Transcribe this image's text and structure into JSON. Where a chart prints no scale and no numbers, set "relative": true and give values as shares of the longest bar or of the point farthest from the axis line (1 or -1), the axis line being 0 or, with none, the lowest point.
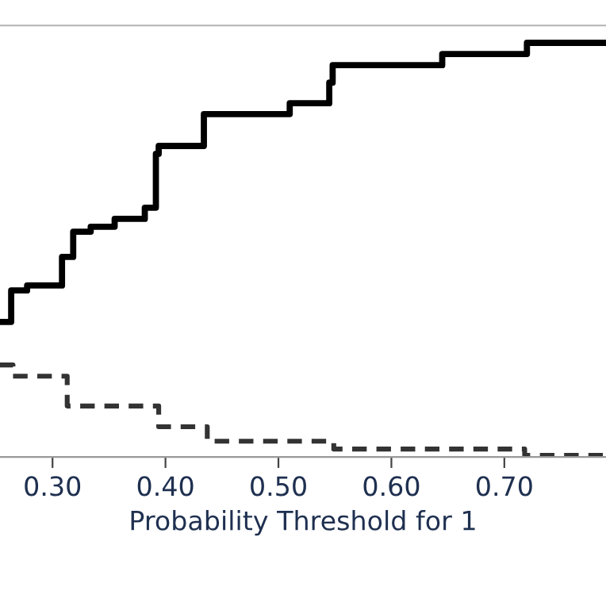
{
  "chart_data": {
    "type": "step",
    "relative": true,
    "xlabel": "Probability Threshold for 1",
    "xlim": [
      0.2535,
      0.79
    ],
    "xticks": [
      {
        "value": 0.3,
        "label": "0.30"
      },
      {
        "value": 0.4,
        "label": "0.40"
      },
      {
        "value": 0.5,
        "label": "0.50"
      },
      {
        "value": 0.6,
        "label": "0.60"
      },
      {
        "value": 0.7,
        "label": "0.70"
      }
    ],
    "tick_labels": "x",
    "grid": false,
    "legend": false,
    "series": [
      {
        "color": "#000000",
        "line_style": "solid",
        "x": [
          0.2535,
          0.2634,
          0.2775,
          0.3084,
          0.3183,
          0.3338,
          0.355,
          0.3817,
          0.3915,
          0.394,
          0.434,
          0.51,
          0.545,
          0.548,
          0.645,
          0.72,
          0.79
        ],
        "values": [
          0.326,
          0.402,
          0.414,
          0.483,
          0.544,
          0.556,
          0.575,
          0.602,
          0.732,
          0.751,
          0.828,
          0.854,
          0.904,
          0.946,
          0.973,
          1.0,
          1.0
        ]
      },
      {
        "color": "#333333",
        "line_style": "dashed",
        "x": [
          0.2535,
          0.265,
          0.313,
          0.394,
          0.437,
          0.549,
          0.718,
          0.79
        ],
        "values": [
          0.222,
          0.195,
          0.123,
          0.073,
          0.038,
          0.019,
          0.004,
          0.004
        ]
      }
    ]
  }
}
